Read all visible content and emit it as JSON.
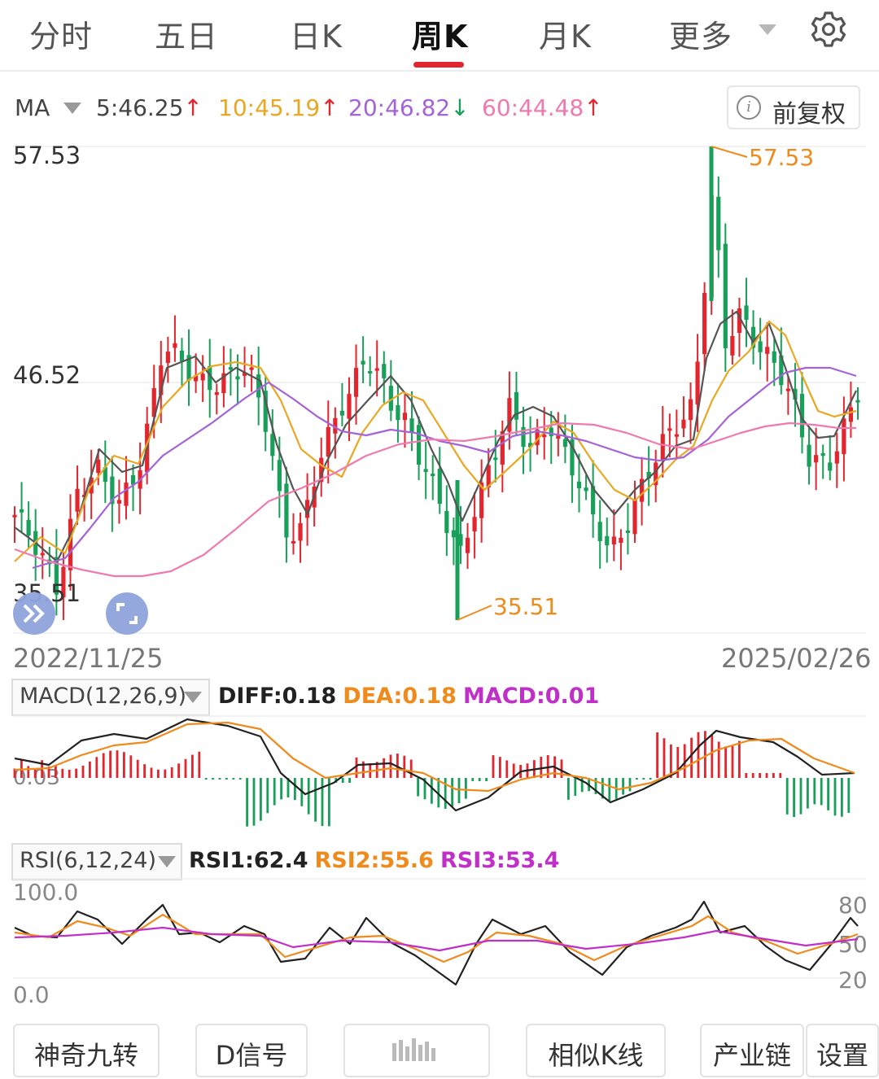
{
  "tabs": [
    {
      "label": "分时",
      "active": false
    },
    {
      "label": "五日",
      "active": false
    },
    {
      "label": "日K",
      "active": false
    },
    {
      "label": "周K",
      "active": true
    },
    {
      "label": "月K",
      "active": false
    },
    {
      "label": "更多",
      "active": false
    }
  ],
  "icons": {
    "settings": "gear-icon",
    "more_dropdown": "chevron-down-icon",
    "info": "info-icon",
    "expand": "double-chevron-right-icon",
    "fullscreen": "fullscreen-icon"
  },
  "ma_bar": {
    "label": "MA",
    "items": [
      {
        "text": "5:46.25",
        "arrow": "↑",
        "color": "#444444",
        "arrow_color": "#e3262e"
      },
      {
        "text": "10:45.19",
        "arrow": "↑",
        "color": "#e9a824",
        "arrow_color": "#e3262e"
      },
      {
        "text": "20:46.82",
        "arrow": "↓",
        "color": "#a463d6",
        "arrow_color": "#18a05a"
      },
      {
        "text": "60:44.48",
        "arrow": "↑",
        "color": "#ee7ab0",
        "arrow_color": "#e3262e"
      }
    ],
    "adjust_button": "前复权"
  },
  "main_chart": {
    "y_max_label": "57.53",
    "y_mid_label": "46.52",
    "y_min_label": "35.51",
    "high_marker": "57.53",
    "low_marker": "35.51",
    "start_date": "2022/11/25",
    "end_date": "2025/02/26"
  },
  "macd": {
    "selector": "MACD(12,26,9)",
    "zero_label": "0.03",
    "values": [
      {
        "text": "DIFF:0.18",
        "color": "#222222"
      },
      {
        "text": "DEA:0.18",
        "color": "#ef8a1c"
      },
      {
        "text": "MACD:0.01",
        "color": "#c030c8"
      }
    ]
  },
  "rsi": {
    "selector": "RSI(6,12,24)",
    "values": [
      {
        "text": "RSI1:62.4",
        "color": "#222222"
      },
      {
        "text": "RSI2:55.6",
        "color": "#ef8a1c"
      },
      {
        "text": "RSI3:53.4",
        "color": "#c030c8"
      }
    ],
    "left_top": "100.0",
    "left_bottom": "0.0",
    "right_labels": [
      "80",
      "50",
      "20"
    ]
  },
  "bottom_buttons": [
    "神奇九转",
    "D信号",
    "",
    "相似K线",
    "产业链",
    "设置"
  ],
  "colors": {
    "up": "#e3262e",
    "down": "#18a05a",
    "accent": "#e3262e",
    "marker": "#ef8a1c"
  },
  "chart_data": {
    "type": "candlestick",
    "x_range": [
      "2022/11/25",
      "2025/02/26"
    ],
    "y_range": [
      35.51,
      57.53
    ],
    "high": 57.53,
    "low": 35.51,
    "ma_latest": {
      "MA5": 46.25,
      "MA10": 45.19,
      "MA20": 46.82,
      "MA60": 44.48
    },
    "macd_latest": {
      "DIFF": 0.18,
      "DEA": 0.18,
      "MACD": 0.01
    },
    "rsi_latest": {
      "RSI1": 62.4,
      "RSI2": 55.6,
      "RSI3": 53.4
    }
  }
}
